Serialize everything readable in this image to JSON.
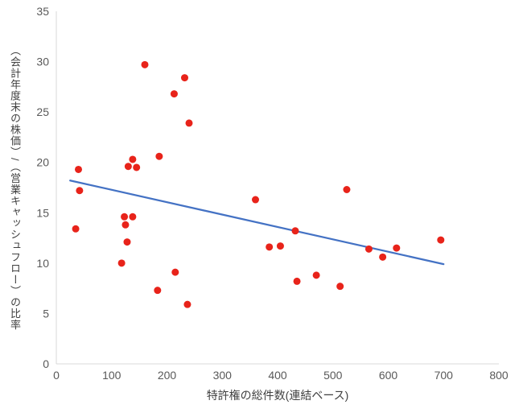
{
  "chart_data": {
    "type": "scatter",
    "title": "",
    "xlabel": "特許権の総件数(連結ベース)",
    "ylabel": "（会計年度末の株価）/（営業キャッシュフロー）の比率",
    "xlim": [
      0,
      800
    ],
    "ylim": [
      0,
      35
    ],
    "x_ticks": [
      0,
      100,
      200,
      300,
      400,
      500,
      600,
      700,
      800
    ],
    "y_ticks": [
      0,
      5,
      10,
      15,
      20,
      25,
      30,
      35
    ],
    "grid": false,
    "legend": "none",
    "point_color": "#e8231a",
    "line_color": "#4472c4",
    "axis_color": "#d9d9d9",
    "tick_label_color": "#595959",
    "points": [
      [
        35,
        13.4
      ],
      [
        40,
        19.3
      ],
      [
        42,
        17.2
      ],
      [
        118,
        10.0
      ],
      [
        123,
        14.6
      ],
      [
        125,
        13.8
      ],
      [
        128,
        12.1
      ],
      [
        130,
        19.6
      ],
      [
        138,
        14.6
      ],
      [
        138,
        20.3
      ],
      [
        145,
        19.5
      ],
      [
        160,
        29.7
      ],
      [
        183,
        7.3
      ],
      [
        186,
        20.6
      ],
      [
        213,
        26.8
      ],
      [
        215,
        9.1
      ],
      [
        232,
        28.4
      ],
      [
        237,
        5.9
      ],
      [
        240,
        23.9
      ],
      [
        360,
        16.3
      ],
      [
        385,
        11.6
      ],
      [
        405,
        11.7
      ],
      [
        432,
        13.2
      ],
      [
        435,
        8.2
      ],
      [
        470,
        8.8
      ],
      [
        513,
        7.7
      ],
      [
        525,
        17.3
      ],
      [
        565,
        11.4
      ],
      [
        590,
        10.6
      ],
      [
        615,
        11.5
      ],
      [
        695,
        12.3
      ]
    ],
    "trendline": {
      "x1": 25,
      "y1": 18.2,
      "x2": 700,
      "y2": 9.9
    }
  }
}
